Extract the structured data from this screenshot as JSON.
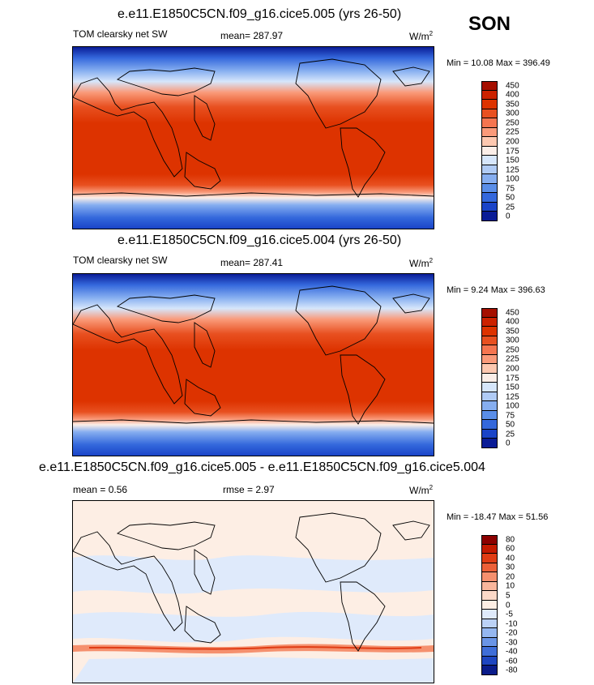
{
  "season": "SON",
  "panels": [
    {
      "title": "e.e11.E1850C5CN.f09_g16.cice5.005 (yrs 26-50)",
      "left_label": "TOM clearsky net SW",
      "center_label": "mean= 287.97",
      "units_base": "W/m",
      "units_sup": "2",
      "minmax": "Min =  10.08 Max = 396.49",
      "colorbar": {
        "labels": [
          "450",
          "400",
          "350",
          "300",
          "250",
          "225",
          "200",
          "175",
          "150",
          "125",
          "100",
          "75",
          "50",
          "25",
          "0"
        ],
        "colors": [
          "#a50f00",
          "#cc2200",
          "#dd3300",
          "#e85020",
          "#f57550",
          "#fa9a7a",
          "#fdc8b0",
          "#fbeee8",
          "#d6e6fb",
          "#b0cbf5",
          "#86aef0",
          "#5a8ee8",
          "#3468dc",
          "#1a44c8",
          "#0a1c96"
        ]
      }
    },
    {
      "title": "e.e11.E1850C5CN.f09_g16.cice5.004 (yrs 26-50)",
      "left_label": "TOM clearsky net SW",
      "center_label": "mean= 287.41",
      "units_base": "W/m",
      "units_sup": "2",
      "minmax": "Min =   9.24 Max = 396.63",
      "colorbar": {
        "labels": [
          "450",
          "400",
          "350",
          "300",
          "250",
          "225",
          "200",
          "175",
          "150",
          "125",
          "100",
          "75",
          "50",
          "25",
          "0"
        ],
        "colors": [
          "#a50f00",
          "#cc2200",
          "#dd3300",
          "#e85020",
          "#f57550",
          "#fa9a7a",
          "#fdc8b0",
          "#fbeee8",
          "#d6e6fb",
          "#b0cbf5",
          "#86aef0",
          "#5a8ee8",
          "#3468dc",
          "#1a44c8",
          "#0a1c96"
        ]
      }
    },
    {
      "title": "e.e11.E1850C5CN.f09_g16.cice5.005 - e.e11.E1850C5CN.f09_g16.cice5.004",
      "left_label": "mean =   0.56",
      "center_label": "rmse =   2.97",
      "units_base": "W/m",
      "units_sup": "2",
      "minmax": "Min = -18.47 Max =  51.56",
      "colorbar": {
        "labels": [
          "80",
          "60",
          "40",
          "30",
          "20",
          "10",
          "5",
          "0",
          "-5",
          "-10",
          "-20",
          "-30",
          "-40",
          "-60",
          "-80"
        ],
        "colors": [
          "#8c0000",
          "#c41a00",
          "#e03c14",
          "#ec6038",
          "#f5906e",
          "#f9b69c",
          "#fcd9c8",
          "#fdeee4",
          "#dfeafb",
          "#bcd2f6",
          "#95b7f0",
          "#6a95e6",
          "#3f6ed8",
          "#1e46c0",
          "#0a1c8a"
        ]
      }
    }
  ],
  "chart_data": [
    {
      "type": "heatmap",
      "title": "e.e11.E1850C5CN.f09_g16.cice5.005 (yrs 26-50)",
      "variable": "TOM clearsky net SW",
      "units": "W/m2",
      "mean": 287.97,
      "min": 10.08,
      "max": 396.49,
      "levels": [
        0,
        25,
        50,
        75,
        100,
        125,
        150,
        175,
        200,
        225,
        250,
        300,
        350,
        400,
        450
      ]
    },
    {
      "type": "heatmap",
      "title": "e.e11.E1850C5CN.f09_g16.cice5.004 (yrs 26-50)",
      "variable": "TOM clearsky net SW",
      "units": "W/m2",
      "mean": 287.41,
      "min": 9.24,
      "max": 396.63,
      "levels": [
        0,
        25,
        50,
        75,
        100,
        125,
        150,
        175,
        200,
        225,
        250,
        300,
        350,
        400,
        450
      ]
    },
    {
      "type": "heatmap",
      "title": "e.e11.E1850C5CN.f09_g16.cice5.005 - e.e11.E1850C5CN.f09_g16.cice5.004",
      "units": "W/m2",
      "mean": 0.56,
      "rmse": 2.97,
      "min": -18.47,
      "max": 51.56,
      "levels": [
        -80,
        -60,
        -40,
        -30,
        -20,
        -10,
        -5,
        0,
        5,
        10,
        20,
        30,
        40,
        60,
        80
      ]
    }
  ]
}
